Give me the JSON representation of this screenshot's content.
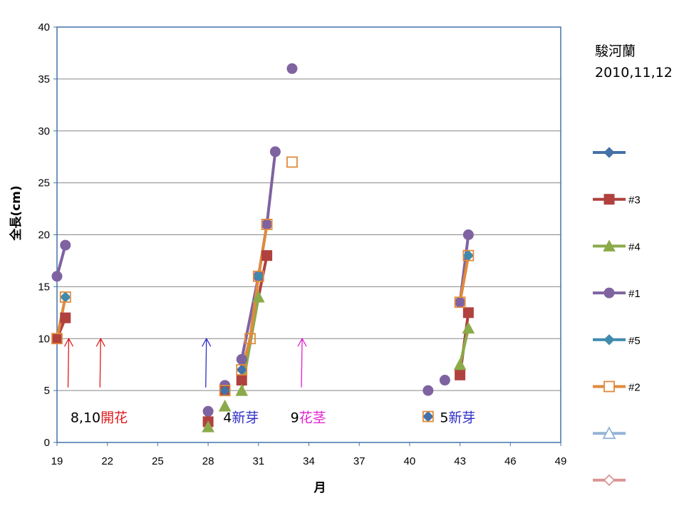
{
  "chart_data": {
    "type": "line",
    "title": "駿河蘭",
    "subtitle": "2010,11,12",
    "xlabel": "月",
    "ylabel": "全長(cm)",
    "xlim": [
      19,
      49
    ],
    "ylim": [
      0,
      40
    ],
    "xticks": [
      19,
      22,
      25,
      28,
      31,
      34,
      37,
      40,
      43,
      46,
      49
    ],
    "yticks": [
      0,
      5,
      10,
      15,
      20,
      25,
      30,
      35,
      40
    ],
    "grid": true,
    "legend_position": "right",
    "series": [
      {
        "name": "",
        "color": "#4472A8",
        "marker": "diamond",
        "line": true,
        "points": [
          [
            29,
            5
          ],
          [
            30.0,
            7
          ],
          [
            41.1,
            2.5
          ]
        ]
      },
      {
        "name": "#3",
        "color": "#B0413E",
        "marker": "square",
        "line": true,
        "points": [
          [
            19,
            10
          ],
          [
            19.5,
            12
          ],
          [
            28,
            2
          ],
          [
            29,
            5
          ],
          [
            30,
            6
          ],
          [
            31.5,
            18
          ],
          [
            43,
            6.5
          ],
          [
            43.5,
            12.5
          ]
        ]
      },
      {
        "name": "#4",
        "color": "#8BAA4A",
        "marker": "triangle",
        "line": true,
        "points": [
          [
            28,
            1.5
          ],
          [
            29,
            3.5
          ],
          [
            30,
            5
          ],
          [
            31,
            14
          ],
          [
            43,
            7.5
          ],
          [
            43.5,
            11
          ]
        ]
      },
      {
        "name": "#1",
        "color": "#7F63A1",
        "marker": "circle",
        "line": true,
        "points": [
          [
            19,
            16
          ],
          [
            19.5,
            19
          ],
          [
            28,
            3
          ],
          [
            29,
            5.5
          ],
          [
            30,
            8
          ],
          [
            31,
            16
          ],
          [
            31.5,
            21
          ],
          [
            32,
            28
          ],
          [
            33,
            36
          ],
          [
            41.1,
            5
          ],
          [
            42.1,
            6
          ],
          [
            43,
            13.5
          ],
          [
            43.5,
            20
          ]
        ]
      },
      {
        "name": "#5",
        "color": "#3E8BAE",
        "marker": "diamond",
        "line": true,
        "points": [
          [
            19.5,
            14
          ],
          [
            31,
            16
          ],
          [
            43.5,
            18
          ]
        ]
      },
      {
        "name": "#2",
        "color": "#E08A3C",
        "marker": "square-open",
        "line": true,
        "points": [
          [
            19,
            10
          ],
          [
            19.5,
            14
          ],
          [
            29,
            5
          ],
          [
            30,
            7
          ],
          [
            30.5,
            10
          ],
          [
            31,
            16
          ],
          [
            31.5,
            21
          ],
          [
            33,
            27
          ],
          [
            41.1,
            2.5
          ],
          [
            43,
            13.5
          ],
          [
            43.5,
            18
          ]
        ]
      },
      {
        "name": "",
        "color": "#95B3D7",
        "marker": "triangle-open",
        "line": true,
        "points": []
      },
      {
        "name": "",
        "color": "#D99694",
        "marker": "diamond-open",
        "line": true,
        "points": []
      }
    ],
    "series_segments": [
      [
        0,
        2
      ],
      [
        1,
        2
      ],
      [
        2,
        2
      ],
      [
        3,
        2
      ],
      [
        4,
        1
      ],
      [
        5,
        2
      ]
    ],
    "annotations": [
      {
        "text": "8,10開花",
        "number": "8,10",
        "word": "開花",
        "color": "#E01A1A",
        "x": 19.8,
        "y": 2.5
      },
      {
        "text": "4新芽",
        "number": "4",
        "word": "新芽",
        "color": "#2E2EC8",
        "x": 28.9,
        "y": 2.5
      },
      {
        "text": "9花茎",
        "number": "9",
        "word": "花茎",
        "color": "#E020D0",
        "x": 32.9,
        "y": 2.5
      },
      {
        "text": "5新芽",
        "number": "5",
        "word": "新芽",
        "color": "#2E2EC8",
        "x": 41.8,
        "y": 2.5
      }
    ],
    "arrows": [
      {
        "color": "#E01A1A",
        "x": 19.7,
        "y_from": 5.3,
        "y_to": 10
      },
      {
        "color": "#E01A1A",
        "x": 21.6,
        "y_from": 5.3,
        "y_to": 10
      },
      {
        "color": "#2E2EC8",
        "x": 27.9,
        "y_from": 5.3,
        "y_to": 10
      },
      {
        "color": "#E020D0",
        "x": 33.6,
        "y_from": 5.3,
        "y_to": 10
      }
    ]
  }
}
